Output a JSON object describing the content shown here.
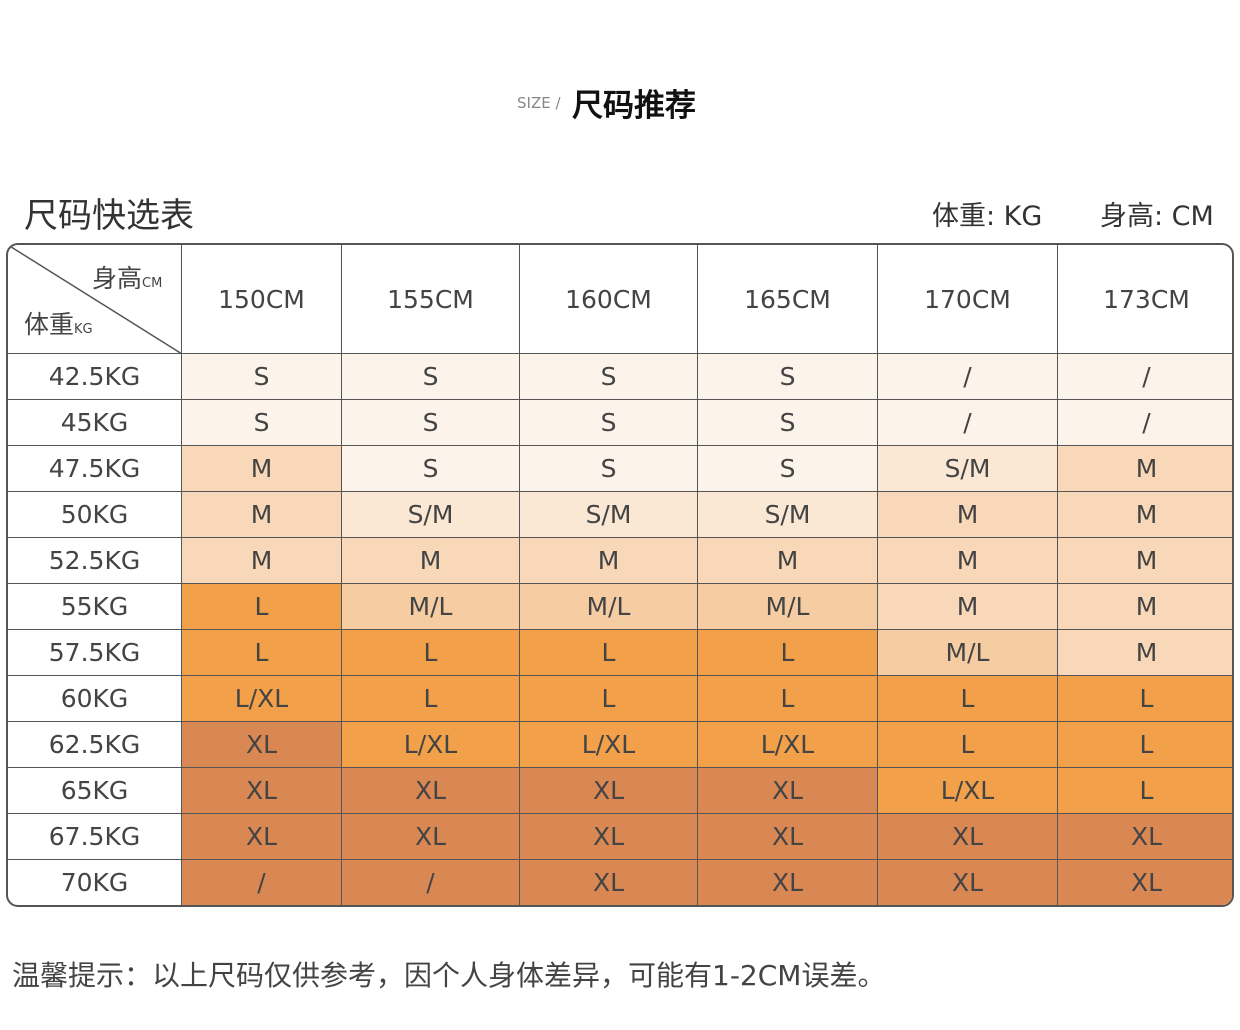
{
  "header": {
    "prefix": "SIZE /",
    "title": "尺码推荐"
  },
  "table": {
    "title": "尺码快选表",
    "weight_unit_note": "体重: KG",
    "height_unit_note": "身高: CM",
    "corner": {
      "height_label": "身高",
      "height_unit": "CM",
      "weight_label": "体重",
      "weight_unit": "KG"
    },
    "columns": [
      "150CM",
      "155CM",
      "160CM",
      "165CM",
      "170CM",
      "173CM"
    ],
    "rows": [
      {
        "label": "42.5KG",
        "sizes": [
          "S",
          "S",
          "S",
          "S",
          "/",
          "/"
        ]
      },
      {
        "label": "45KG",
        "sizes": [
          "S",
          "S",
          "S",
          "S",
          "/",
          "/"
        ]
      },
      {
        "label": "47.5KG",
        "sizes": [
          "M",
          "S",
          "S",
          "S",
          "S/M",
          "M"
        ]
      },
      {
        "label": "50KG",
        "sizes": [
          "M",
          "S/M",
          "S/M",
          "S/M",
          "M",
          "M"
        ]
      },
      {
        "label": "52.5KG",
        "sizes": [
          "M",
          "M",
          "M",
          "M",
          "M",
          "M"
        ]
      },
      {
        "label": "55KG",
        "sizes": [
          "L",
          "M/L",
          "M/L",
          "M/L",
          "M",
          "M"
        ]
      },
      {
        "label": "57.5KG",
        "sizes": [
          "L",
          "L",
          "L",
          "L",
          "M/L",
          "M"
        ]
      },
      {
        "label": "60KG",
        "sizes": [
          "L/XL",
          "L",
          "L",
          "L",
          "L",
          "L"
        ]
      },
      {
        "label": "62.5KG",
        "sizes": [
          "XL",
          "L/XL",
          "L/XL",
          "L/XL",
          "L",
          "L"
        ]
      },
      {
        "label": "65KG",
        "sizes": [
          "XL",
          "XL",
          "XL",
          "XL",
          "L/XL",
          "L"
        ]
      },
      {
        "label": "67.5KG",
        "sizes": [
          "XL",
          "XL",
          "XL",
          "XL",
          "XL",
          "XL"
        ]
      },
      {
        "label": "70KG",
        "sizes": [
          "/",
          "/",
          "XL",
          "XL",
          "XL",
          "XL"
        ]
      }
    ]
  },
  "note": "温馨提示：以上尺码仅供参考，因个人身体差异，可能有1-2CM误差。"
}
